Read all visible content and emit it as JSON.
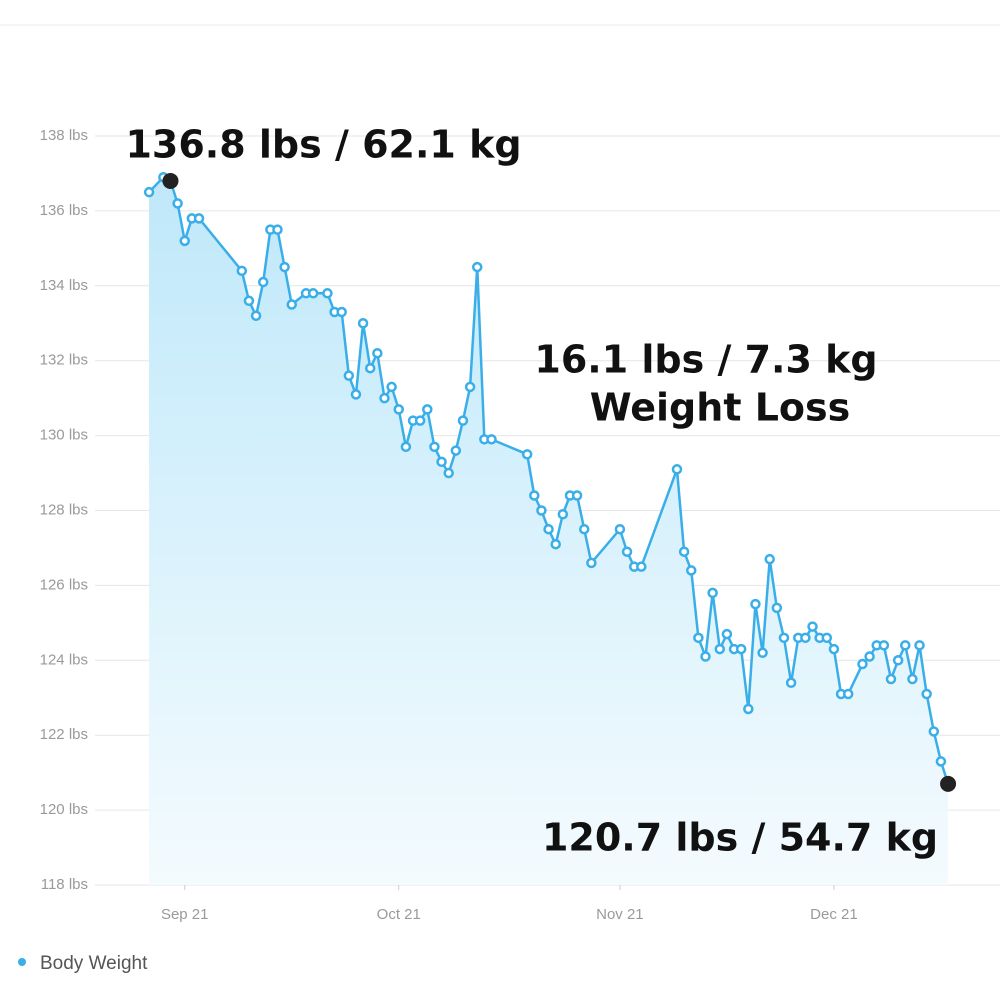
{
  "chart_data": {
    "type": "line",
    "x": [
      "Sep 16",
      "Sep 18",
      "Sep 19",
      "Sep 20",
      "Sep 21",
      "Sep 22",
      "Sep 23",
      "Sep 29",
      "Sep 30",
      "Oct 1",
      "Oct 2",
      "Oct 3",
      "Oct 4",
      "Oct 5",
      "Oct 6",
      "Oct 8",
      "Oct 9",
      "Oct 11",
      "Oct 12",
      "Oct 13",
      "Oct 14",
      "Oct 15",
      "Oct 16",
      "Oct 17",
      "Oct 18",
      "Oct 19",
      "Oct 20",
      "Oct 21",
      "Oct 22",
      "Oct 23",
      "Oct 24",
      "Oct 25",
      "Oct 26",
      "Oct 27",
      "Oct 28",
      "Oct 29",
      "Oct 30",
      "Oct 31",
      "Nov 1",
      "Nov 2",
      "Nov 3",
      "Nov 8",
      "Nov 9",
      "Nov 10",
      "Nov 11",
      "Nov 12",
      "Nov 13",
      "Nov 14",
      "Nov 15",
      "Nov 16",
      "Nov 17",
      "Nov 21",
      "Nov 22",
      "Nov 23",
      "Nov 24",
      "Nov 29",
      "Nov 30",
      "Dec 1",
      "Dec 2",
      "Dec 3",
      "Dec 4",
      "Dec 5",
      "Dec 6",
      "Dec 7",
      "Dec 8",
      "Dec 9",
      "Dec 10",
      "Dec 11",
      "Dec 12",
      "Dec 13",
      "Dec 14",
      "Dec 15",
      "Dec 16",
      "Dec 17",
      "Dec 18",
      "Dec 19",
      "Dec 20",
      "Dec 21",
      "Dec 22",
      "Dec 23",
      "Dec 25",
      "Dec 26",
      "Dec 27",
      "Dec 28",
      "Dec 29",
      "Dec 30",
      "Dec 31",
      "Jan 1",
      "Jan 2",
      "Jan 3",
      "Jan 4",
      "Jan 5",
      "Jan 6"
    ],
    "series": [
      {
        "name": "Body Weight",
        "color": "#3aaee8",
        "values": [
          136.5,
          136.9,
          136.8,
          136.2,
          135.2,
          135.8,
          135.8,
          134.4,
          133.6,
          133.2,
          134.1,
          135.5,
          135.5,
          134.5,
          133.5,
          133.8,
          133.8,
          133.8,
          133.3,
          133.3,
          131.6,
          131.1,
          133.0,
          131.8,
          132.2,
          131.0,
          131.3,
          130.7,
          129.7,
          130.4,
          130.4,
          130.7,
          129.7,
          129.3,
          129.0,
          129.6,
          130.4,
          131.3,
          134.5,
          129.9,
          129.9,
          129.5,
          128.4,
          128.0,
          127.5,
          127.1,
          127.9,
          128.4,
          128.4,
          127.5,
          126.6,
          127.5,
          126.9,
          126.5,
          126.5,
          129.1,
          126.9,
          126.4,
          124.6,
          124.1,
          125.8,
          124.3,
          124.7,
          124.3,
          124.3,
          122.7,
          125.5,
          124.2,
          126.7,
          125.4,
          124.6,
          123.4,
          124.6,
          124.6,
          124.9,
          124.6,
          124.6,
          124.3,
          123.1,
          123.1,
          123.9,
          124.1,
          124.4,
          124.4,
          123.5,
          124.0,
          124.4,
          123.5,
          124.4,
          123.1,
          122.1,
          121.3,
          120.7
        ]
      }
    ],
    "xlim": [
      "Sep 8",
      "Jan 13"
    ],
    "xticks": [
      "Sep 21",
      "Oct 21",
      "Nov 21",
      "Dec 21"
    ],
    "ylim": [
      118,
      138
    ],
    "yticks": [
      {
        "value": 118,
        "label": "118 lbs"
      },
      {
        "value": 120,
        "label": "120 lbs"
      },
      {
        "value": 122,
        "label": "122 lbs"
      },
      {
        "value": 124,
        "label": "124 lbs"
      },
      {
        "value": 126,
        "label": "126 lbs"
      },
      {
        "value": 128,
        "label": "128 lbs"
      },
      {
        "value": 130,
        "label": "130 lbs"
      },
      {
        "value": 132,
        "label": "132 lbs"
      },
      {
        "value": 134,
        "label": "134 lbs"
      },
      {
        "value": 136,
        "label": "136 lbs"
      },
      {
        "value": 138,
        "label": "138 lbs"
      }
    ],
    "grid": true,
    "legend": "bottom-left",
    "annotations": [
      {
        "text": "136.8 lbs / 62.1 kg",
        "x": "Sep 19",
        "y": 136.8
      },
      {
        "text": "120.7 lbs / 54.7 kg",
        "x": "Jan 6",
        "y": 120.7
      }
    ],
    "note": [
      "16.1 lbs / 7.3 kg",
      "Weight Loss"
    ]
  }
}
